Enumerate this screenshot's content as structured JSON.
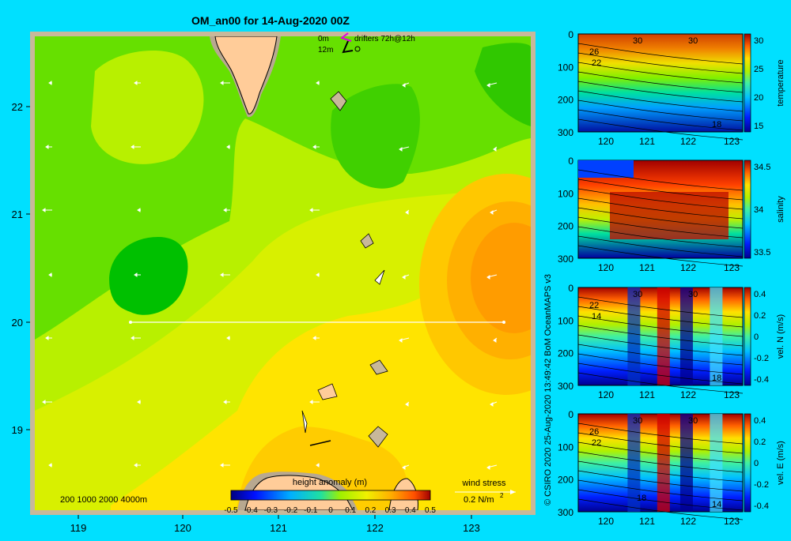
{
  "map": {
    "title": "OM_an00 for 14-Aug-2020 00Z",
    "x_ticks": [
      "119",
      "120",
      "121",
      "122",
      "123"
    ],
    "y_ticks": [
      "22",
      "21",
      "20",
      "19"
    ],
    "legend_depth": {
      "line1": "0m",
      "line2": "12m"
    },
    "legend_drifters": "drifters 72h@12h",
    "bathy_label": "200  1000  2000  4000m",
    "colorbar": {
      "title": "height anomaly (m)",
      "ticks": [
        "-0.5",
        "-0.4",
        "-0.3",
        "-0.2",
        "-0.1",
        "0",
        "0.1",
        "0.2",
        "0.3",
        "0.4",
        "0.5"
      ]
    },
    "wind": {
      "label": "wind stress",
      "scale": "0.2 N/m",
      "scale_exp": "2"
    }
  },
  "side_label": "© CSIRO 2020   25-Aug-2020 13:49:42  BoM OceanMAPS v3",
  "panels": [
    {
      "name": "temperature",
      "y_ticks": [
        "0",
        "100",
        "200",
        "300"
      ],
      "x_ticks": [
        "120",
        "121",
        "122",
        "123"
      ],
      "cb_ticks": [
        "30",
        "25",
        "20",
        "15"
      ],
      "cb_label": "temperature",
      "contour_labels": [
        "30",
        "30",
        "26",
        "22",
        "18"
      ]
    },
    {
      "name": "salinity",
      "y_ticks": [
        "0",
        "100",
        "200",
        "300"
      ],
      "x_ticks": [
        "120",
        "121",
        "122",
        "123"
      ],
      "cb_ticks": [
        "34.5",
        "34",
        "33.5"
      ],
      "cb_label": "salinity",
      "contour_labels": []
    },
    {
      "name": "vel-n",
      "y_ticks": [
        "0",
        "100",
        "200",
        "300"
      ],
      "x_ticks": [
        "120",
        "121",
        "122",
        "123"
      ],
      "cb_ticks": [
        "0.4",
        "0.2",
        "0",
        "-0.2",
        "-0.4"
      ],
      "cb_label": "vel. N (m/s)",
      "contour_labels": [
        "30",
        "30",
        "22",
        "14",
        "18"
      ]
    },
    {
      "name": "vel-e",
      "y_ticks": [
        "0",
        "100",
        "200",
        "300"
      ],
      "x_ticks": [
        "120",
        "121",
        "122",
        "123"
      ],
      "cb_ticks": [
        "0.4",
        "0.2",
        "0",
        "-0.2",
        "-0.4"
      ],
      "cb_label": "vel. E (m/s)",
      "contour_labels": [
        "30",
        "30",
        "26",
        "22",
        "14",
        "18"
      ]
    }
  ]
}
